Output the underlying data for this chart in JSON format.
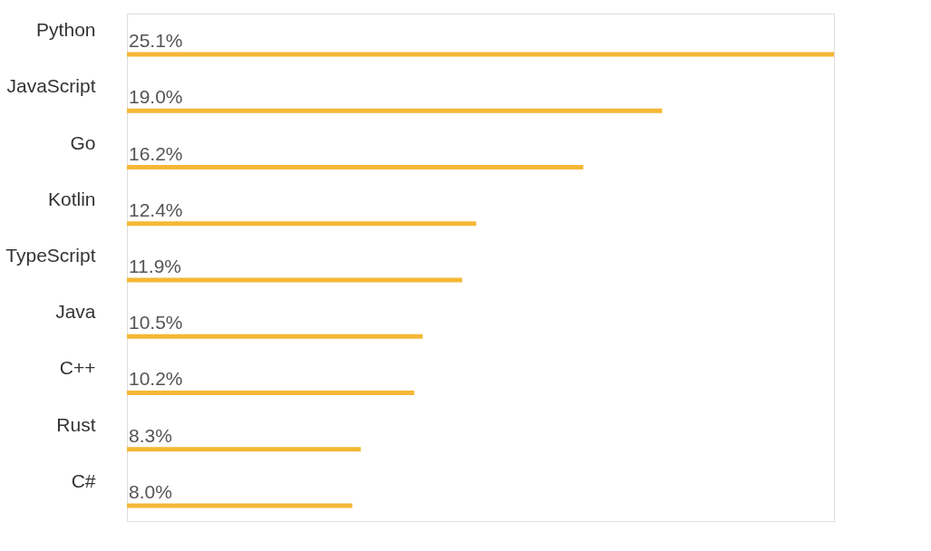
{
  "chart_data": {
    "type": "bar",
    "orientation": "horizontal",
    "categories": [
      "Python",
      "JavaScript",
      "Go",
      "Kotlin",
      "TypeScript",
      "Java",
      "C++",
      "Rust",
      "C#"
    ],
    "values": [
      25.1,
      19.0,
      16.2,
      12.4,
      11.9,
      10.5,
      10.2,
      8.3,
      8.0
    ],
    "value_labels": [
      "25.1%",
      "19.0%",
      "16.2%",
      "12.4%",
      "11.9%",
      "10.5%",
      "10.2%",
      "8.3%",
      "8.0%"
    ],
    "color": "#f5b835"
  }
}
